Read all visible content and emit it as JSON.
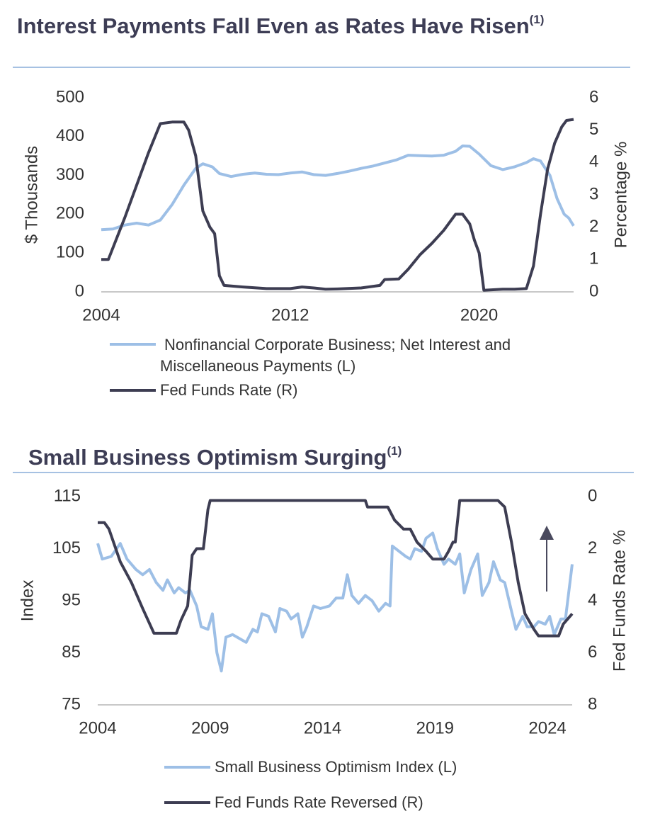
{
  "chart_data": [
    {
      "type": "line",
      "title": "Interest Payments Fall Even as Rates Have Risen",
      "title_superscript": "(1)",
      "y_label": "$ Thousands",
      "y2_label": "Percentage %",
      "xlim": [
        2004,
        2024
      ],
      "xticks": [
        2004,
        2012,
        2020
      ],
      "ylim": [
        0,
        500
      ],
      "yticks": [
        0,
        100,
        200,
        300,
        400,
        500
      ],
      "y2lim": [
        0,
        6
      ],
      "y2ticks": [
        0,
        1,
        2,
        3,
        4,
        5,
        6
      ],
      "series": [
        {
          "name": " Nonfinancial Corporate Business; Net Interest and Miscellaneous Payments (L)",
          "color": "#9dbfe6",
          "axis": "y",
          "x": [
            2004,
            2004.5,
            2005,
            2005.5,
            2006,
            2006.5,
            2007,
            2007.5,
            2008,
            2008.3,
            2008.7,
            2009,
            2009.5,
            2010,
            2010.5,
            2011,
            2011.5,
            2012,
            2012.5,
            2013,
            2013.5,
            2014,
            2014.5,
            2015,
            2015.5,
            2016,
            2016.5,
            2017,
            2017.5,
            2018,
            2018.5,
            2019,
            2019.3,
            2019.6,
            2020,
            2020.5,
            2021,
            2021.5,
            2022,
            2022.3,
            2022.6,
            2023,
            2023.3,
            2023.6,
            2023.8,
            2024
          ],
          "values": [
            160,
            162,
            172,
            177,
            172,
            185,
            225,
            275,
            318,
            330,
            322,
            305,
            297,
            303,
            306,
            303,
            302,
            306,
            309,
            302,
            300,
            305,
            311,
            318,
            324,
            332,
            340,
            352,
            351,
            350,
            352,
            362,
            376,
            375,
            355,
            325,
            315,
            322,
            333,
            343,
            337,
            300,
            240,
            200,
            190,
            170
          ]
        },
        {
          "name": "Fed Funds Rate (R)",
          "color": "#3d3d52",
          "axis": "y2",
          "x": [
            2004,
            2004.3,
            2005,
            2005.5,
            2006,
            2006.5,
            2007,
            2007.5,
            2007.7,
            2008,
            2008.3,
            2008.6,
            2008.8,
            2009,
            2009.2,
            2010,
            2011,
            2012,
            2012.5,
            2013,
            2013.5,
            2014,
            2015,
            2015.8,
            2016,
            2016.6,
            2017,
            2017.5,
            2018,
            2018.5,
            2019,
            2019.3,
            2019.6,
            2019.8,
            2020,
            2020.2,
            2021,
            2021.5,
            2022,
            2022.3,
            2022.6,
            2022.9,
            2023.2,
            2023.5,
            2023.7,
            2024
          ],
          "values": [
            1.0,
            1.0,
            2.3,
            3.3,
            4.3,
            5.2,
            5.25,
            5.25,
            5.0,
            4.2,
            2.5,
            2.0,
            1.8,
            0.5,
            0.2,
            0.15,
            0.1,
            0.1,
            0.15,
            0.12,
            0.08,
            0.09,
            0.12,
            0.2,
            0.38,
            0.4,
            0.7,
            1.15,
            1.5,
            1.9,
            2.4,
            2.4,
            2.1,
            1.6,
            1.2,
            0.05,
            0.08,
            0.08,
            0.1,
            0.8,
            2.4,
            3.8,
            4.6,
            5.1,
            5.3,
            5.33
          ]
        }
      ]
    },
    {
      "type": "line",
      "title": "Small Business Optimism Surging",
      "title_superscript": "(1)",
      "y_label": "Index",
      "y2_label": "Fed Funds Rate %",
      "xlim": [
        2004,
        2025.1
      ],
      "xticks": [
        2004,
        2009,
        2014,
        2019,
        2024
      ],
      "ylim": [
        75,
        115
      ],
      "yticks": [
        75,
        85,
        95,
        105,
        115
      ],
      "y2lim": [
        8,
        0
      ],
      "y2ticks": [
        0,
        2,
        4,
        6,
        8
      ],
      "y2_reversed": true,
      "series": [
        {
          "name": "Small Business Optimism Index (L)",
          "color": "#9dbfe6",
          "axis": "y",
          "x": [
            2004,
            2004.2,
            2004.6,
            2005,
            2005.3,
            2005.7,
            2006,
            2006.3,
            2006.6,
            2006.9,
            2007.1,
            2007.4,
            2007.6,
            2007.9,
            2008.1,
            2008.4,
            2008.6,
            2008.9,
            2009.1,
            2009.3,
            2009.5,
            2009.7,
            2010,
            2010.4,
            2010.6,
            2010.9,
            2011.1,
            2011.3,
            2011.6,
            2011.9,
            2012.1,
            2012.4,
            2012.6,
            2012.9,
            2013.1,
            2013.3,
            2013.6,
            2013.9,
            2014.3,
            2014.6,
            2014.9,
            2015.1,
            2015.3,
            2015.6,
            2015.9,
            2016.2,
            2016.5,
            2016.8,
            2017,
            2017.1,
            2017.4,
            2017.7,
            2017.9,
            2018.1,
            2018.4,
            2018.6,
            2018.9,
            2019.1,
            2019.4,
            2019.6,
            2019.9,
            2020.1,
            2020.3,
            2020.6,
            2020.9,
            2021.1,
            2021.4,
            2021.6,
            2021.9,
            2022.1,
            2022.4,
            2022.6,
            2022.9,
            2023.1,
            2023.4,
            2023.6,
            2023.9,
            2024.1,
            2024.3,
            2024.6,
            2024.8,
            2025.1
          ],
          "values": [
            106,
            103,
            103.5,
            106,
            103,
            101,
            100,
            101,
            98.5,
            97,
            99,
            96.5,
            97.5,
            96.5,
            97,
            94,
            90,
            89.5,
            92.5,
            85,
            81.5,
            88,
            88.5,
            87.5,
            87,
            89.5,
            89,
            92.5,
            92,
            89,
            93.5,
            93,
            91.5,
            92.5,
            88,
            90,
            94,
            93.5,
            94,
            95.5,
            95.5,
            100,
            96,
            94.5,
            96,
            95,
            93,
            94.5,
            94,
            105.5,
            104.5,
            103.5,
            103,
            105,
            104.5,
            107,
            108,
            105,
            102,
            103,
            102,
            104,
            96.5,
            101,
            104,
            96,
            98.5,
            102.5,
            99,
            98.5,
            93,
            89.5,
            92,
            90,
            90,
            91,
            90.5,
            92,
            88.5,
            91.5,
            91.5,
            102
          ]
        },
        {
          "name": "Fed Funds Rate Reversed (R)",
          "color": "#3d3d52",
          "axis": "y2",
          "x": [
            2004,
            2004.3,
            2004.5,
            2005,
            2005.5,
            2006,
            2006.5,
            2007,
            2007.5,
            2007.7,
            2008,
            2008.2,
            2008.4,
            2008.7,
            2008.9,
            2009,
            2015.9,
            2016,
            2016.9,
            2017.2,
            2017.6,
            2017.9,
            2018.2,
            2018.6,
            2018.9,
            2019.4,
            2019.6,
            2019.8,
            2019.9,
            2020.1,
            2021.8,
            2022.1,
            2022.4,
            2022.7,
            2023,
            2023.4,
            2023.6,
            2024.5,
            2024.7,
            2025.1
          ],
          "values": [
            1.0,
            1.0,
            1.25,
            2.5,
            3.3,
            4.3,
            5.25,
            5.25,
            5.25,
            4.75,
            4.2,
            2.25,
            2.0,
            2.0,
            0.5,
            0.15,
            0.15,
            0.4,
            0.4,
            0.9,
            1.25,
            1.25,
            1.75,
            2.1,
            2.4,
            2.4,
            2.1,
            1.75,
            1.75,
            0.15,
            0.15,
            0.4,
            1.75,
            3.3,
            4.5,
            5.1,
            5.35,
            5.35,
            4.9,
            4.5
          ]
        }
      ]
    }
  ]
}
